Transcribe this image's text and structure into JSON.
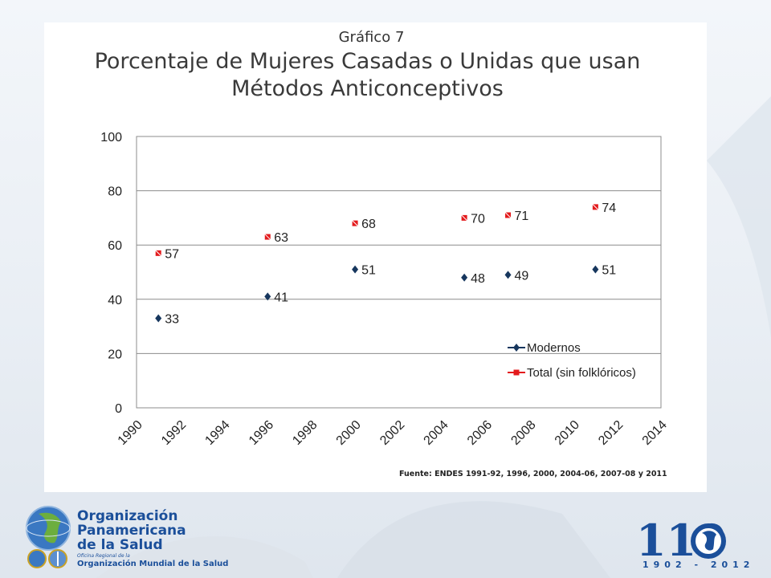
{
  "chart_number": "Gráfico 7",
  "title_line1": "Porcentaje de Mujeres Casadas o Unidas que usan",
  "title_line2": "Métodos Anticonceptivos",
  "source": "Fuente: ENDES 1991-92, 1996, 2000, 2004-06, 2007-08 y 2011",
  "footer": {
    "org_line1": "Organización",
    "org_line2": "Panamericana",
    "org_line3": "de la Salud",
    "regional_office": "Oficina Regional de la",
    "who_name": "Organización Mundial de la Salud",
    "anniversary_number": "110",
    "anniversary_years": "1902 - 2012"
  },
  "colors": {
    "modernos": "#17375e",
    "total": "#e31a1c",
    "brand": "#1b4f9a"
  },
  "chart_data": {
    "type": "scatter",
    "title": "Porcentaje de Mujeres Casadas o Unidas que usan Métodos Anticonceptivos",
    "xlim": [
      1990,
      2014
    ],
    "ylim": [
      0,
      100
    ],
    "x_ticks": [
      "1990",
      "1992",
      "1994",
      "1996",
      "1998",
      "2000",
      "2002",
      "2004",
      "2006",
      "2008",
      "2010",
      "2012",
      "2014"
    ],
    "y_ticks": [
      "0",
      "20",
      "40",
      "60",
      "80",
      "100"
    ],
    "grid": "horizontal",
    "legend_position": "bottom-right",
    "series": [
      {
        "name": "Modernos",
        "marker": "diamond",
        "points": [
          {
            "x": 1991,
            "y": 33,
            "label": "33"
          },
          {
            "x": 1996,
            "y": 41,
            "label": "41"
          },
          {
            "x": 2000,
            "y": 51,
            "label": "51"
          },
          {
            "x": 2005,
            "y": 48,
            "label": "48"
          },
          {
            "x": 2007,
            "y": 49,
            "label": "49"
          },
          {
            "x": 2011,
            "y": 51,
            "label": "51"
          }
        ]
      },
      {
        "name": "Total (sin folklóricos)",
        "marker": "square",
        "points": [
          {
            "x": 1991,
            "y": 57,
            "label": "57"
          },
          {
            "x": 1996,
            "y": 63,
            "label": "63"
          },
          {
            "x": 2000,
            "y": 68,
            "label": "68"
          },
          {
            "x": 2005,
            "y": 70,
            "label": "70"
          },
          {
            "x": 2007,
            "y": 71,
            "label": "71"
          },
          {
            "x": 2011,
            "y": 74,
            "label": "74"
          }
        ]
      }
    ]
  }
}
